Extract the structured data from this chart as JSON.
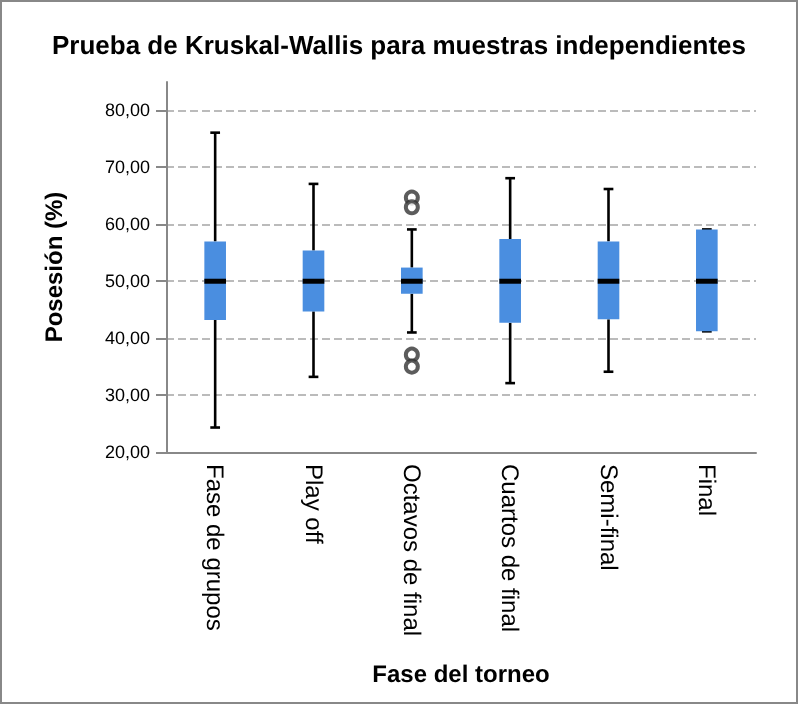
{
  "chart_data": {
    "type": "box",
    "title": "Prueba de Kruskal-Wallis para muestras independientes",
    "xlabel": "Fase del torneo",
    "ylabel": "Posesión (%)",
    "categories": [
      "Fase de grupos",
      "Play off",
      "Octavos de final",
      "Cuartos de final",
      "Semi-final",
      "Final"
    ],
    "series": [
      {
        "color": "#4a8ee0",
        "boxes": [
          {
            "low": 24.3,
            "q1": 43.2,
            "median": 50,
            "q3": 57,
            "high": 76.1
          },
          {
            "low": 33.2,
            "q1": 44.7,
            "median": 50,
            "q3": 55.4,
            "high": 67.1
          },
          {
            "low": 41,
            "q1": 47.8,
            "median": 50,
            "q3": 52.4,
            "high": 59.1,
            "outliers": [
              64.7,
              63,
              37.1,
              35
            ]
          },
          {
            "low": 32.1,
            "q1": 42.7,
            "median": 50,
            "q3": 57.4,
            "high": 68.1
          },
          {
            "low": 34.1,
            "q1": 43.3,
            "median": 50,
            "q3": 57,
            "high": 66.2
          },
          {
            "low": 41.2,
            "q1": 41.2,
            "median": 50,
            "q3": 59.1,
            "high": 59.1
          }
        ]
      }
    ],
    "ylim": [
      20,
      85
    ],
    "yticks": [
      {
        "value": 20,
        "label": "20,00"
      },
      {
        "value": 30,
        "label": "30,00"
      },
      {
        "value": 40,
        "label": "40,00"
      },
      {
        "value": 50,
        "label": "50,00"
      },
      {
        "value": 60,
        "label": "60,00"
      },
      {
        "value": 70,
        "label": "70,00"
      },
      {
        "value": 80,
        "label": "80,00"
      }
    ],
    "grid": "y",
    "marker": "circle"
  }
}
